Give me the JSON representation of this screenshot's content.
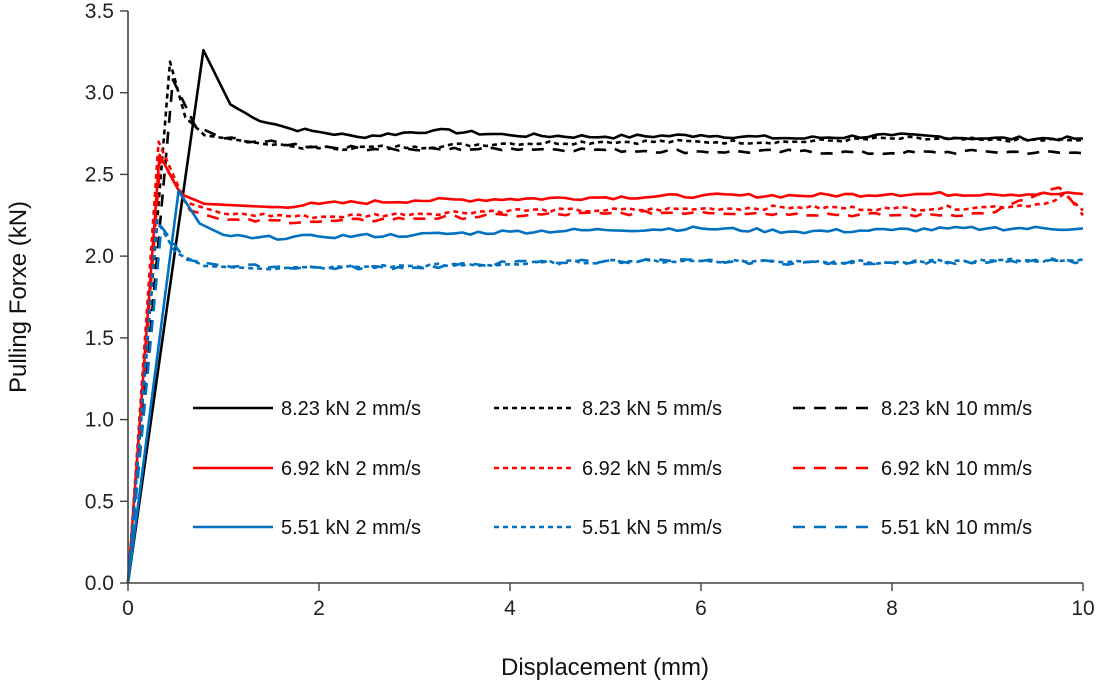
{
  "chart_data": {
    "type": "line",
    "title": "",
    "xlabel": "Displacement (mm)",
    "ylabel": "Pulling Forxe (kN)",
    "xlim": [
      0,
      10
    ],
    "ylim": [
      0,
      3.5
    ],
    "xticks": [
      0,
      2,
      4,
      6,
      8,
      10
    ],
    "xtick_labels": [
      "0",
      "2",
      "4",
      "6",
      "8",
      "10"
    ],
    "yticks": [
      0,
      0.5,
      1.0,
      1.5,
      2.0,
      2.5,
      3.0,
      3.5
    ],
    "ytick_labels": [
      "0.0",
      "0.5",
      "1.0",
      "1.5",
      "2.0",
      "2.5",
      "3.0",
      "3.5"
    ],
    "grid": false,
    "legend_position": "center",
    "series": [
      {
        "name": "8.23 kN 2 mm/s",
        "color": "#000000",
        "dash": "solid",
        "x": [
          0,
          0.79,
          1.07,
          1.3,
          1.7,
          2.0,
          2.4,
          3.2,
          4,
          5,
          6,
          7,
          8,
          9,
          10
        ],
        "y": [
          0,
          3.26,
          2.93,
          2.85,
          2.78,
          2.76,
          2.73,
          2.77,
          2.74,
          2.73,
          2.74,
          2.72,
          2.74,
          2.72,
          2.72
        ]
      },
      {
        "name": "8.23 kN 5 mm/s",
        "color": "#000000",
        "dash": "short",
        "x": [
          0,
          0.44,
          0.6,
          0.8,
          1.5,
          2,
          3,
          4,
          5,
          6,
          7,
          8,
          9,
          10
        ],
        "y": [
          0,
          3.19,
          2.85,
          2.74,
          2.68,
          2.66,
          2.67,
          2.69,
          2.7,
          2.7,
          2.7,
          2.72,
          2.71,
          2.71
        ]
      },
      {
        "name": "8.23 kN 10 mm/s",
        "color": "#000000",
        "dash": "long",
        "x": [
          0,
          0.47,
          0.7,
          1.0,
          2,
          3,
          4,
          5,
          6,
          7,
          8,
          9,
          10
        ],
        "y": [
          0,
          3.08,
          2.8,
          2.72,
          2.67,
          2.65,
          2.66,
          2.65,
          2.64,
          2.64,
          2.63,
          2.64,
          2.63
        ]
      },
      {
        "name": "6.92 kN 2 mm/s",
        "color": "#ff0000",
        "dash": "solid",
        "x": [
          0,
          0.33,
          0.55,
          0.8,
          1.5,
          2,
          3,
          4,
          5,
          6,
          7,
          8,
          9,
          10
        ],
        "y": [
          0,
          2.62,
          2.38,
          2.32,
          2.3,
          2.32,
          2.34,
          2.35,
          2.36,
          2.37,
          2.37,
          2.38,
          2.38,
          2.38
        ]
      },
      {
        "name": "6.92 kN 5 mm/s",
        "color": "#ff0000",
        "dash": "short",
        "x": [
          0,
          0.32,
          0.6,
          1.0,
          2,
          3,
          4,
          5,
          6,
          7,
          8,
          9,
          9.6,
          9.8,
          10
        ],
        "y": [
          0,
          2.7,
          2.33,
          2.26,
          2.24,
          2.26,
          2.28,
          2.28,
          2.29,
          2.3,
          2.29,
          2.3,
          2.32,
          2.38,
          2.28
        ]
      },
      {
        "name": "6.92 kN 10 mm/s",
        "color": "#ff0000",
        "dash": "long",
        "x": [
          0,
          0.34,
          0.65,
          1.0,
          2,
          3,
          4,
          5,
          6,
          7,
          8,
          9,
          9.75,
          10
        ],
        "y": [
          0,
          2.6,
          2.28,
          2.22,
          2.21,
          2.23,
          2.25,
          2.26,
          2.27,
          2.26,
          2.25,
          2.26,
          2.42,
          2.25
        ]
      },
      {
        "name": "5.51 kN 2 mm/s",
        "color": "#0070c0",
        "dash": "solid",
        "x": [
          0,
          0.53,
          0.75,
          1.0,
          1.3,
          2,
          3,
          4,
          5,
          6,
          7,
          8,
          9,
          10
        ],
        "y": [
          0,
          2.4,
          2.2,
          2.13,
          2.11,
          2.12,
          2.13,
          2.15,
          2.16,
          2.17,
          2.15,
          2.16,
          2.17,
          2.17
        ]
      },
      {
        "name": "5.51 kN 5 mm/s",
        "color": "#0070c0",
        "dash": "short",
        "x": [
          0,
          0.3,
          0.5,
          0.8,
          1.5,
          2,
          3,
          4,
          5,
          6,
          7,
          8,
          9,
          10
        ],
        "y": [
          0,
          2.22,
          2.02,
          1.94,
          1.92,
          1.93,
          1.94,
          1.95,
          1.97,
          1.97,
          1.97,
          1.96,
          1.97,
          1.98
        ]
      },
      {
        "name": "5.51 kN 10 mm/s",
        "color": "#0070c0",
        "dash": "long",
        "x": [
          0,
          0.35,
          0.6,
          1.0,
          2,
          3,
          4,
          5,
          6,
          7,
          8,
          9,
          10
        ],
        "y": [
          0,
          2.18,
          1.98,
          1.94,
          1.93,
          1.93,
          1.96,
          1.97,
          1.97,
          1.96,
          1.96,
          1.96,
          1.97
        ]
      }
    ]
  }
}
